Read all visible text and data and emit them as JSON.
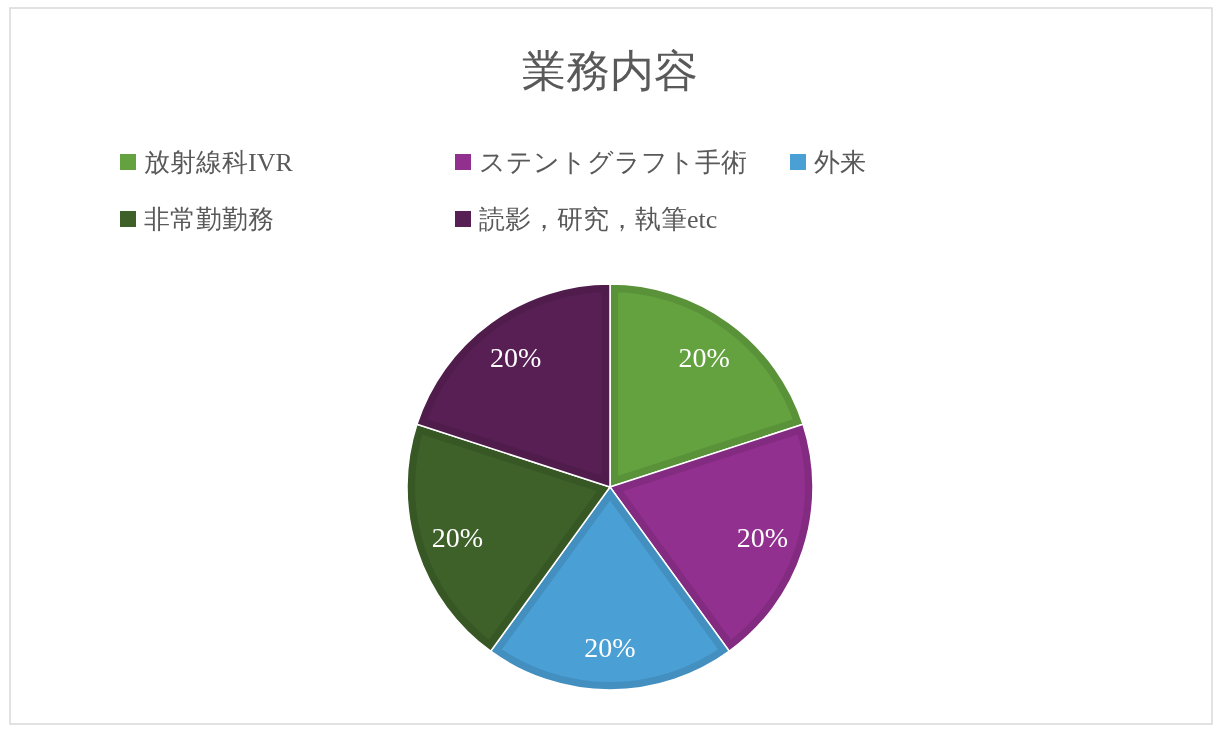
{
  "chart_data": {
    "type": "pie",
    "title": "業務内容",
    "categories": [
      "放射線科IVR",
      "ステントグラフト手術",
      "外来",
      "非常勤勤務",
      "読影，研究，執筆etc"
    ],
    "values": [
      20,
      20,
      20,
      20,
      20
    ],
    "colors": [
      "#63a23f",
      "#92308f",
      "#4a9fd5",
      "#3d6129",
      "#581f54"
    ],
    "value_labels": [
      "20%",
      "20%",
      "20%",
      "20%",
      "20%"
    ],
    "legend": "top"
  }
}
